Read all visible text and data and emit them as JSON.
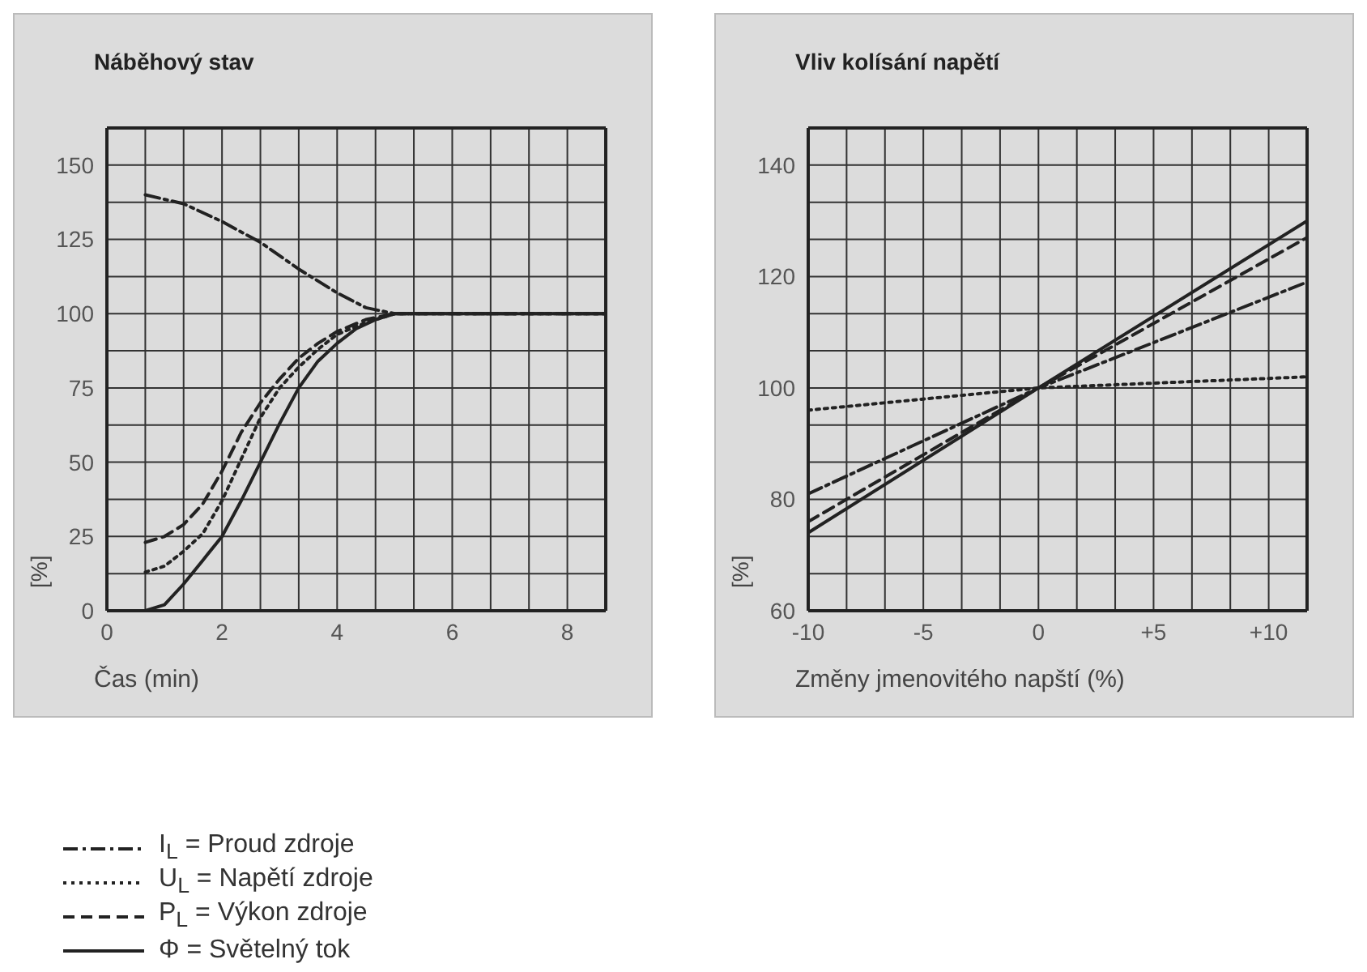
{
  "chart_data": [
    {
      "type": "line",
      "title": "Náběhový stav",
      "xlabel": "Čas (min)",
      "ylabel": "[%]",
      "xlim": [
        0,
        8.667
      ],
      "xticks": [
        0,
        {
          "value": 0.667,
          "label": null
        },
        {
          "value": 1.333,
          "label": null
        },
        2,
        {
          "value": 2.667,
          "label": null
        },
        {
          "value": 3.333,
          "label": null
        },
        4,
        {
          "value": 4.667,
          "label": null
        },
        {
          "value": 5.333,
          "label": null
        },
        6,
        {
          "value": 6.667,
          "label": null
        },
        {
          "value": 7.333,
          "label": null
        },
        8
      ],
      "ylim": [
        0,
        162.5
      ],
      "yticks": [
        0,
        {
          "value": 12.5,
          "label": null
        },
        25,
        {
          "value": 37.5,
          "label": null
        },
        50,
        {
          "value": 62.5,
          "label": null
        },
        75,
        {
          "value": 87.5,
          "label": null
        },
        100,
        {
          "value": 112.5,
          "label": null
        },
        125,
        {
          "value": 137.5,
          "label": null
        },
        150
      ],
      "grid": true,
      "legend": "bottom",
      "series": [
        {
          "name": "I$_{L}$ = Proud zdroje",
          "color": "#222222",
          "line_style": "dashdot",
          "x": [
            0.667,
            1.333,
            2,
            2.667,
            3.333,
            4,
            4.5,
            5,
            8.667
          ],
          "values": [
            140,
            137,
            131,
            124,
            115,
            107,
            102,
            100,
            100
          ]
        },
        {
          "name": "U$_{L}$ = Napětí zdroje",
          "color": "#222222",
          "line_style": "dotted",
          "x": [
            0.667,
            1,
            1.333,
            1.667,
            2,
            2.333,
            2.667,
            3,
            3.333,
            3.667,
            4,
            4.5,
            5,
            8.667
          ],
          "values": [
            13,
            15,
            20,
            26,
            37,
            51,
            65,
            75,
            82,
            88,
            93,
            97,
            100,
            100
          ]
        },
        {
          "name": "P$_{L}$ = Výkon zdroje",
          "color": "#222222",
          "line_style": "dashed",
          "x": [
            0.667,
            1,
            1.333,
            1.667,
            2,
            2.333,
            2.667,
            3,
            3.333,
            3.667,
            4,
            4.5,
            5,
            8.667
          ],
          "values": [
            23,
            25,
            29,
            36,
            47,
            60,
            70,
            78,
            85,
            90,
            94,
            98,
            100,
            100
          ]
        },
        {
          "name": "Φ = Světelný tok",
          "color": "#222222",
          "line_style": "solid",
          "x": [
            0.667,
            1,
            1.333,
            1.667,
            2,
            2.333,
            2.667,
            3,
            3.333,
            3.667,
            4,
            4.333,
            4.667,
            5,
            8.667
          ],
          "values": [
            0,
            2,
            9,
            17,
            25,
            37,
            50,
            63,
            75,
            84,
            90,
            95,
            98,
            100,
            100
          ]
        }
      ]
    },
    {
      "type": "line",
      "title": "Vliv kolísání napětí",
      "xlabel": "Změny jmenovitého napští (%)",
      "ylabel": "[%]",
      "xlim": [
        -10,
        11.667
      ],
      "xticks": [
        -10,
        {
          "value": -8.333,
          "label": null
        },
        {
          "value": -6.667,
          "label": null
        },
        -5,
        {
          "value": -3.333,
          "label": null
        },
        {
          "value": -1.667,
          "label": null
        },
        0,
        {
          "value": 1.667,
          "label": null
        },
        {
          "value": 3.333,
          "label": null
        },
        {
          "value": 5,
          "label": "+5"
        },
        {
          "value": 6.667,
          "label": null
        },
        {
          "value": 8.333,
          "label": null
        },
        {
          "value": 10,
          "label": "+10"
        }
      ],
      "ylim": [
        60,
        146.667
      ],
      "yticks": [
        60,
        {
          "value": 66.667,
          "label": null
        },
        {
          "value": 73.333,
          "label": null
        },
        80,
        {
          "value": 86.667,
          "label": null
        },
        {
          "value": 93.333,
          "label": null
        },
        100,
        {
          "value": 106.667,
          "label": null
        },
        {
          "value": 113.333,
          "label": null
        },
        120,
        {
          "value": 126.667,
          "label": null
        },
        {
          "value": 133.333,
          "label": null
        },
        140
      ],
      "grid": true,
      "series": [
        {
          "color": "#222222",
          "line_style": "dashdot",
          "x": [
            -10,
            0,
            11.667
          ],
          "values": [
            81,
            100,
            119
          ]
        },
        {
          "color": "#222222",
          "line_style": "dotted",
          "x": [
            -10,
            0,
            11.667
          ],
          "values": [
            96,
            100,
            102
          ]
        },
        {
          "color": "#222222",
          "line_style": "dashed",
          "x": [
            -10,
            0,
            11.667
          ],
          "values": [
            76,
            100,
            127
          ]
        },
        {
          "color": "#222222",
          "line_style": "solid",
          "x": [
            -10,
            0,
            11.667
          ],
          "values": [
            74,
            100,
            130
          ]
        }
      ]
    }
  ]
}
